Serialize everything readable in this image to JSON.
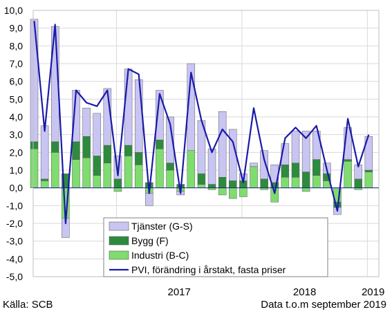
{
  "chart_data": {
    "type": "bar",
    "stacked": true,
    "yticks": [
      "10,0",
      "9,0",
      "8,0",
      "7,0",
      "6,0",
      "5,0",
      "4,0",
      "3,0",
      "2,0",
      "1,0",
      "0,0",
      "-1,0",
      "-2,0",
      "-3,0",
      "-4,0",
      "-5,0"
    ],
    "ylim": [
      -5,
      10
    ],
    "x_group_labels": [
      {
        "label": "2017",
        "start_index": 8
      },
      {
        "label": "2018",
        "start_index": 20
      },
      {
        "label": "2019",
        "start_index": 32
      }
    ],
    "grid": true,
    "legend_position": "bottom-center",
    "series": [
      {
        "name": "Industri (B-C)",
        "kind": "bar",
        "color": "#7fdc6f",
        "values": [
          2.2,
          0.4,
          2.0,
          -1.7,
          1.6,
          1.7,
          0.7,
          1.4,
          -0.2,
          1.8,
          1.3,
          -0.3,
          2.2,
          1.0,
          -0.2,
          2.1,
          0.2,
          -0.1,
          -0.4,
          -0.6,
          -0.5,
          1.2,
          -0.1,
          -0.8,
          0.6,
          0.6,
          -0.2,
          0.7,
          0.4,
          -0.8,
          1.5,
          -0.1,
          0.9
        ]
      },
      {
        "name": "Bygg (F)",
        "kind": "bar",
        "color": "#2e8b3e",
        "values": [
          0.4,
          0.1,
          0.6,
          0.8,
          1.0,
          1.2,
          1.1,
          1.0,
          0.5,
          0.6,
          0.7,
          0.3,
          0.5,
          0.4,
          0.2,
          0.0,
          0.6,
          0.2,
          0.6,
          0.4,
          0.4,
          0.0,
          0.5,
          0.3,
          0.7,
          0.8,
          0.9,
          0.9,
          0.4,
          -0.3,
          0.1,
          0.5,
          0.1
        ]
      },
      {
        "name": "Tjänster (G-S)",
        "kind": "bar",
        "color": "#c9c5f2",
        "values": [
          6.9,
          3.0,
          6.5,
          -1.1,
          2.9,
          1.6,
          2.4,
          3.2,
          1.3,
          4.3,
          4.1,
          -0.7,
          2.8,
          2.6,
          -0.2,
          4.9,
          3.0,
          2.0,
          3.7,
          2.9,
          0.4,
          0.2,
          1.6,
          1.0,
          1.2,
          1.8,
          2.3,
          1.6,
          0.6,
          -0.4,
          1.8,
          0.8,
          1.9
        ]
      },
      {
        "name": "PVI, förändring i årstakt, fasta priser",
        "kind": "line",
        "color": "#1a1aa8",
        "values": [
          9.4,
          3.2,
          9.2,
          -2.0,
          5.5,
          4.8,
          4.6,
          5.5,
          0.7,
          6.7,
          6.4,
          -0.3,
          5.3,
          3.6,
          -0.3,
          6.5,
          3.8,
          2.0,
          3.3,
          2.6,
          0.3,
          4.5,
          1.6,
          -0.3,
          2.8,
          3.4,
          2.8,
          3.5,
          1.0,
          -1.3,
          3.9,
          1.2,
          3.0
        ]
      }
    ]
  },
  "footer": {
    "source": "Källa: SCB",
    "note": "Data t.o.m september 2019"
  }
}
